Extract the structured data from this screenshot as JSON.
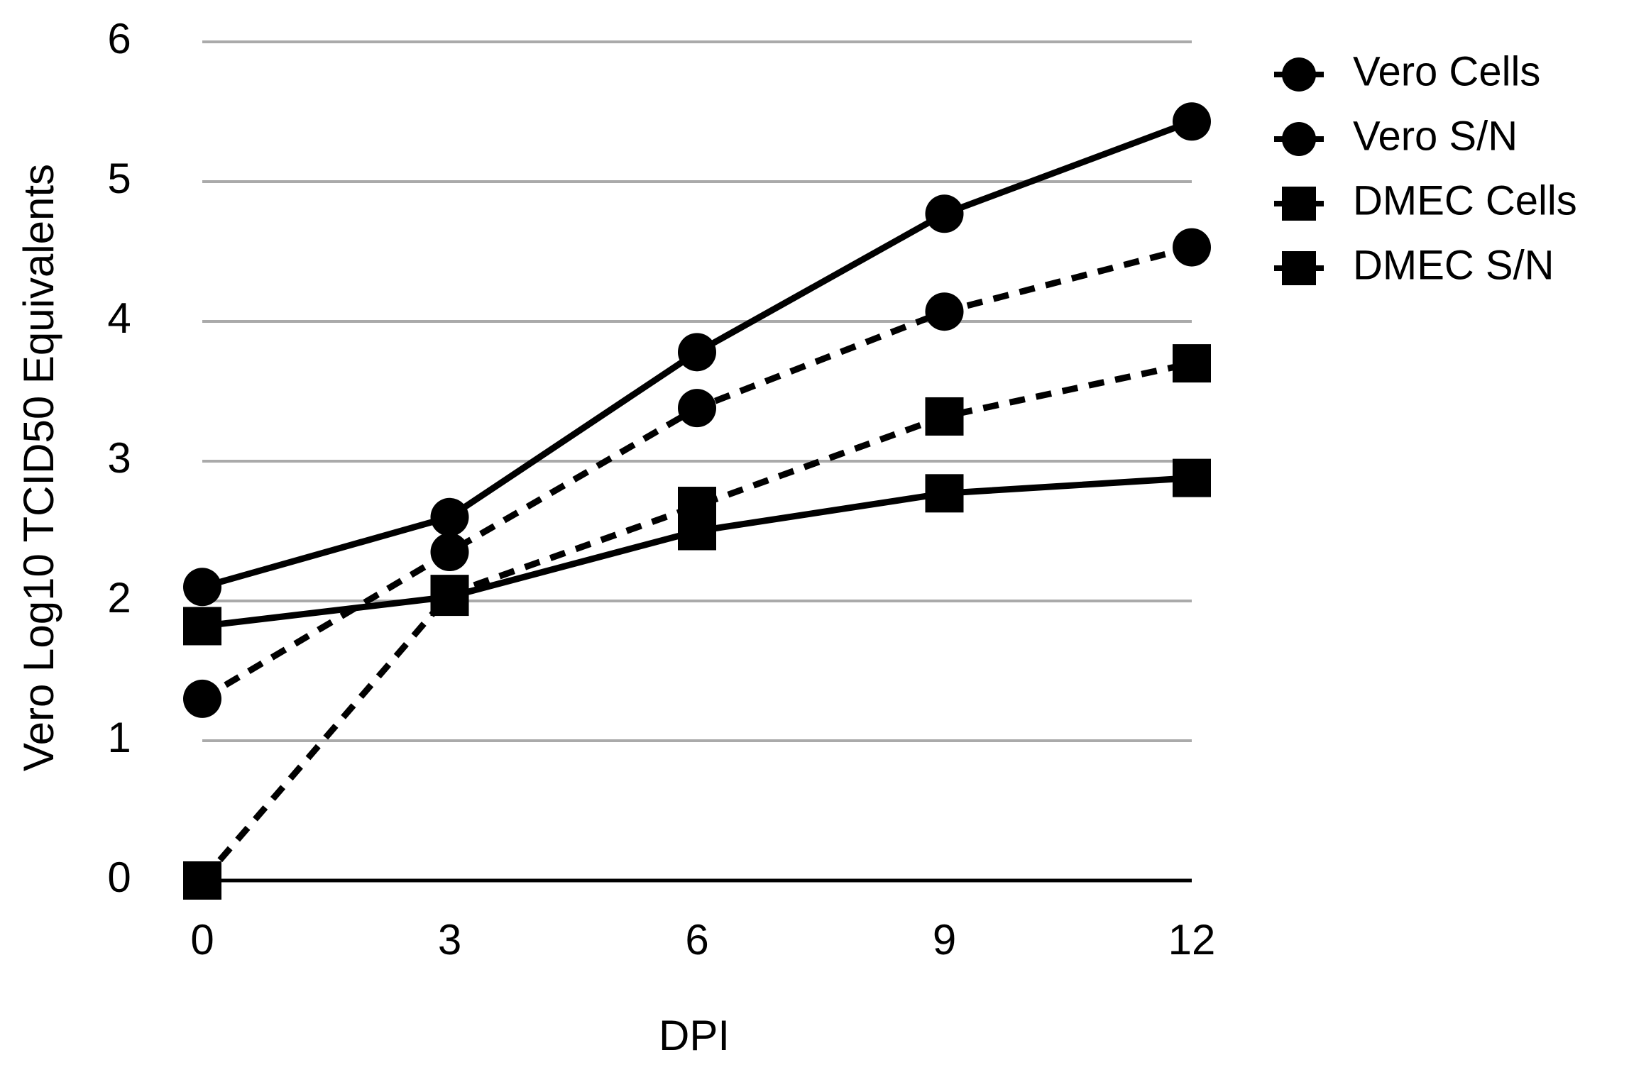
{
  "chart_data": {
    "type": "line",
    "x": [
      0,
      3,
      6,
      9,
      12
    ],
    "x_label": "DPI",
    "y_label": "Vero Log10 TCID50 Equivalents",
    "xlim": [
      0,
      12
    ],
    "xticks": [
      0,
      3,
      6,
      9,
      12
    ],
    "ylim": [
      0,
      6
    ],
    "yticks": [
      0,
      1,
      2,
      3,
      4,
      5,
      6
    ],
    "grid": true,
    "legend": "right",
    "series": [
      {
        "name": "Vero Cells",
        "color": "#000000",
        "marker": "circle",
        "dashed": false,
        "values": [
          2.1,
          2.6,
          3.78,
          4.77,
          5.43
        ]
      },
      {
        "name": "Vero S/N",
        "color": "#000000",
        "marker": "circle",
        "dashed": true,
        "values": [
          1.3,
          2.35,
          3.38,
          4.07,
          4.53
        ]
      },
      {
        "name": "DMEC Cells",
        "color": "#000000",
        "marker": "square",
        "dashed": false,
        "values": [
          1.82,
          2.03,
          2.5,
          2.77,
          2.88
        ]
      },
      {
        "name": "DMEC S/N",
        "color": "#000000",
        "marker": "square",
        "dashed": true,
        "values": [
          0,
          2.05,
          2.68,
          3.32,
          3.7
        ]
      }
    ]
  }
}
